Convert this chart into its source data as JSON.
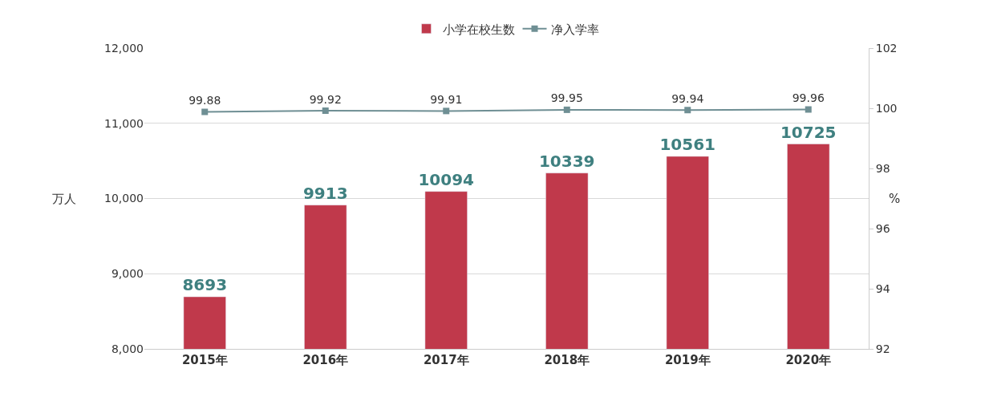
{
  "chart_data": {
    "type": "bar",
    "categories": [
      "2015年",
      "2016年",
      "2017年",
      "2018年",
      "2019年",
      "2020年"
    ],
    "series": [
      {
        "name": "小学在校生数",
        "color": "#c0394b",
        "values": [
          8693,
          9913,
          10094,
          10339,
          10561,
          10725
        ]
      },
      {
        "name": "净入学率",
        "type": "line",
        "axis": "y2",
        "color": "#6f8f94",
        "values": [
          99.88,
          99.92,
          99.91,
          99.95,
          99.94,
          99.96
        ]
      }
    ],
    "ylabel": "万人",
    "y2label": "%",
    "ylim": [
      8000,
      12000
    ],
    "yticks": [
      {
        "value": 8000,
        "label": "8,000"
      },
      {
        "value": 9000,
        "label": "9,000"
      },
      {
        "value": 10000,
        "label": "10,000"
      },
      {
        "value": 11000,
        "label": "11,000"
      },
      {
        "value": 12000,
        "label": "12,000"
      }
    ],
    "y2lim": [
      92,
      102
    ],
    "y2ticks": [
      92,
      94,
      96,
      98,
      100,
      102
    ],
    "grid": "y",
    "legend": "top",
    "marker": "square",
    "data_labels": true
  }
}
